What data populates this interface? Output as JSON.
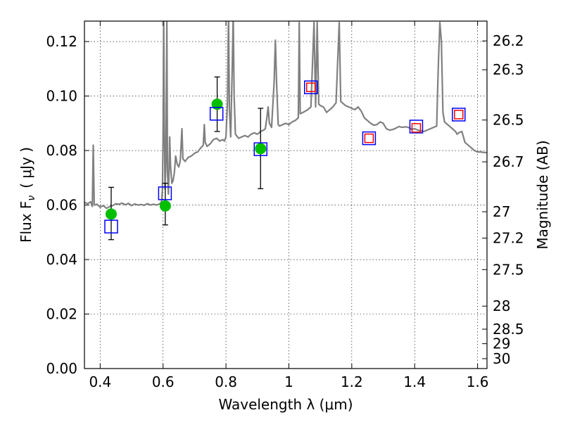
{
  "chart_data": {
    "type": "scatter",
    "xlabel": "Wavelength  λ (μm)",
    "ylabel": "Flux  F",
    "ylabel_sub": "ν",
    "ylabel_unit": "( μJy )",
    "ylabel_right": "Magnitude (AB)",
    "xlim": [
      0.35,
      1.63
    ],
    "ylim": [
      0.0,
      0.1275
    ],
    "x_scale": "linear",
    "y_scale": "linear",
    "grid": true,
    "grid_style": "dotted",
    "x_ticks": [
      {
        "value": 0.4,
        "label": "0.4"
      },
      {
        "value": 0.6,
        "label": "0.6"
      },
      {
        "value": 0.8,
        "label": "0.8"
      },
      {
        "value": 1.0,
        "label": "1"
      },
      {
        "value": 1.2,
        "label": "1.2"
      },
      {
        "value": 1.4,
        "label": "1.4"
      },
      {
        "value": 1.6,
        "label": "1.6"
      }
    ],
    "y_ticks": [
      {
        "value": 0.0,
        "label": "0.00"
      },
      {
        "value": 0.02,
        "label": "0.02"
      },
      {
        "value": 0.04,
        "label": "0.04"
      },
      {
        "value": 0.06,
        "label": "0.06"
      },
      {
        "value": 0.08,
        "label": "0.08"
      },
      {
        "value": 0.1,
        "label": "0.10"
      },
      {
        "value": 0.12,
        "label": "0.12"
      }
    ],
    "right_ticks": [
      {
        "label": "26.2",
        "mag": 26.2
      },
      {
        "label": "26.3",
        "mag": 26.3
      },
      {
        "label": "26.5",
        "mag": 26.5
      },
      {
        "label": "26.7",
        "mag": 26.7
      },
      {
        "label": "27",
        "mag": 27.0
      },
      {
        "label": "27.2",
        "mag": 27.2
      },
      {
        "label": "27.5",
        "mag": 27.5
      },
      {
        "label": "28",
        "mag": 28.0
      },
      {
        "label": "28.5",
        "mag": 28.5
      },
      {
        "label": "29",
        "mag": 29.0
      },
      {
        "label": "30",
        "mag": 30.0
      }
    ],
    "model_spectrum": {
      "color": "#808080",
      "points": [
        [
          0.35,
          0.061
        ],
        [
          0.36,
          0.0605
        ],
        [
          0.37,
          0.0612
        ],
        [
          0.375,
          0.0595
        ],
        [
          0.378,
          0.082
        ],
        [
          0.381,
          0.06
        ],
        [
          0.39,
          0.0603
        ],
        [
          0.4,
          0.0592
        ],
        [
          0.41,
          0.0598
        ],
        [
          0.42,
          0.0588
        ],
        [
          0.43,
          0.0594
        ],
        [
          0.44,
          0.0598
        ],
        [
          0.45,
          0.0605
        ],
        [
          0.46,
          0.0603
        ],
        [
          0.47,
          0.0607
        ],
        [
          0.48,
          0.0601
        ],
        [
          0.49,
          0.0606
        ],
        [
          0.5,
          0.0598
        ],
        [
          0.51,
          0.0604
        ],
        [
          0.52,
          0.06
        ],
        [
          0.53,
          0.0602
        ],
        [
          0.54,
          0.0599
        ],
        [
          0.55,
          0.0605
        ],
        [
          0.56,
          0.06
        ],
        [
          0.57,
          0.0603
        ],
        [
          0.58,
          0.06
        ],
        [
          0.59,
          0.0605
        ],
        [
          0.595,
          0.0612
        ],
        [
          0.598,
          0.0655
        ],
        [
          0.6,
          0.085
        ],
        [
          0.602,
          0.13
        ],
        [
          0.604,
          0.09
        ],
        [
          0.606,
          0.066
        ],
        [
          0.609,
          0.075
        ],
        [
          0.612,
          0.13
        ],
        [
          0.614,
          0.072
        ],
        [
          0.617,
          0.064
        ],
        [
          0.619,
          0.072
        ],
        [
          0.621,
          0.085
        ],
        [
          0.624,
          0.074
        ],
        [
          0.628,
          0.068
        ],
        [
          0.632,
          0.069
        ],
        [
          0.636,
          0.072
        ],
        [
          0.64,
          0.078
        ],
        [
          0.645,
          0.075
        ],
        [
          0.65,
          0.074
        ],
        [
          0.655,
          0.0765
        ],
        [
          0.66,
          0.088
        ],
        [
          0.663,
          0.077
        ],
        [
          0.67,
          0.076
        ],
        [
          0.68,
          0.0775
        ],
        [
          0.69,
          0.078
        ],
        [
          0.7,
          0.079
        ],
        [
          0.71,
          0.0795
        ],
        [
          0.72,
          0.081
        ],
        [
          0.728,
          0.082
        ],
        [
          0.731,
          0.0895
        ],
        [
          0.734,
          0.083
        ],
        [
          0.74,
          0.0815
        ],
        [
          0.75,
          0.0825
        ],
        [
          0.76,
          0.084
        ],
        [
          0.77,
          0.0845
        ],
        [
          0.78,
          0.0835
        ],
        [
          0.79,
          0.084
        ],
        [
          0.795,
          0.0835
        ],
        [
          0.8,
          0.085
        ],
        [
          0.805,
          0.098
        ],
        [
          0.808,
          0.13
        ],
        [
          0.811,
          0.095
        ],
        [
          0.815,
          0.085
        ],
        [
          0.82,
          0.1105
        ],
        [
          0.823,
          0.13
        ],
        [
          0.826,
          0.1
        ],
        [
          0.83,
          0.086
        ],
        [
          0.84,
          0.0845
        ],
        [
          0.85,
          0.085
        ],
        [
          0.86,
          0.0855
        ],
        [
          0.87,
          0.085
        ],
        [
          0.88,
          0.086
        ],
        [
          0.89,
          0.0865
        ],
        [
          0.9,
          0.086
        ],
        [
          0.91,
          0.087
        ],
        [
          0.92,
          0.0875
        ],
        [
          0.925,
          0.088
        ],
        [
          0.93,
          0.092
        ],
        [
          0.934,
          0.096
        ],
        [
          0.938,
          0.09
        ],
        [
          0.945,
          0.0885
        ],
        [
          0.953,
          0.105
        ],
        [
          0.957,
          0.1205
        ],
        [
          0.961,
          0.105
        ],
        [
          0.966,
          0.0895
        ],
        [
          0.97,
          0.089
        ],
        [
          0.98,
          0.0895
        ],
        [
          0.99,
          0.09
        ],
        [
          1.0,
          0.0895
        ],
        [
          1.01,
          0.0905
        ],
        [
          1.02,
          0.091
        ],
        [
          1.03,
          0.092
        ],
        [
          1.033,
          0.127
        ],
        [
          1.036,
          0.0935
        ],
        [
          1.045,
          0.094
        ],
        [
          1.06,
          0.095
        ],
        [
          1.07,
          0.096
        ],
        [
          1.08,
          0.127
        ],
        [
          1.085,
          0.096
        ],
        [
          1.09,
          0.127
        ],
        [
          1.095,
          0.097
        ],
        [
          1.1,
          0.0965
        ],
        [
          1.11,
          0.096
        ],
        [
          1.12,
          0.094
        ],
        [
          1.13,
          0.095
        ],
        [
          1.14,
          0.096
        ],
        [
          1.15,
          0.0975
        ],
        [
          1.16,
          0.127
        ],
        [
          1.165,
          0.098
        ],
        [
          1.17,
          0.0975
        ],
        [
          1.18,
          0.0965
        ],
        [
          1.19,
          0.096
        ],
        [
          1.2,
          0.0955
        ],
        [
          1.21,
          0.095
        ],
        [
          1.22,
          0.096
        ],
        [
          1.23,
          0.0945
        ],
        [
          1.24,
          0.092
        ],
        [
          1.25,
          0.091
        ],
        [
          1.26,
          0.09
        ],
        [
          1.27,
          0.0893
        ],
        [
          1.28,
          0.0895
        ],
        [
          1.29,
          0.0905
        ],
        [
          1.3,
          0.09
        ],
        [
          1.31,
          0.088
        ],
        [
          1.32,
          0.0875
        ],
        [
          1.33,
          0.0877
        ],
        [
          1.34,
          0.0882
        ],
        [
          1.35,
          0.0888
        ],
        [
          1.36,
          0.0885
        ],
        [
          1.37,
          0.0887
        ],
        [
          1.38,
          0.0885
        ],
        [
          1.39,
          0.0878
        ],
        [
          1.4,
          0.088
        ],
        [
          1.41,
          0.0875
        ],
        [
          1.42,
          0.0872
        ],
        [
          1.43,
          0.087
        ],
        [
          1.44,
          0.0875
        ],
        [
          1.45,
          0.088
        ],
        [
          1.46,
          0.0885
        ],
        [
          1.47,
          0.089
        ],
        [
          1.475,
          0.11
        ],
        [
          1.48,
          0.127
        ],
        [
          1.485,
          0.12
        ],
        [
          1.49,
          0.094
        ],
        [
          1.495,
          0.0905
        ],
        [
          1.5,
          0.09
        ],
        [
          1.51,
          0.089
        ],
        [
          1.52,
          0.088
        ],
        [
          1.53,
          0.087
        ],
        [
          1.535,
          0.086
        ],
        [
          1.54,
          0.0865
        ],
        [
          1.55,
          0.087
        ],
        [
          1.555,
          0.085
        ],
        [
          1.56,
          0.083
        ],
        [
          1.57,
          0.082
        ],
        [
          1.58,
          0.081
        ],
        [
          1.59,
          0.08
        ],
        [
          1.6,
          0.0795
        ],
        [
          1.61,
          0.0795
        ],
        [
          1.62,
          0.0793
        ],
        [
          1.63,
          0.0793
        ]
      ]
    },
    "series": [
      {
        "marker": "circle",
        "color": "#00bf00",
        "points": [
          {
            "x": 0.435,
            "y": 0.0567,
            "yerr_low": 0.0473,
            "yerr_high": 0.0665
          },
          {
            "x": 0.607,
            "y": 0.0597,
            "yerr_low": 0.0527,
            "yerr_high": 0.068
          },
          {
            "x": 0.772,
            "y": 0.097,
            "yerr_low": 0.087,
            "yerr_high": 0.107
          },
          {
            "x": 0.91,
            "y": 0.0807,
            "yerr_low": 0.066,
            "yerr_high": 0.0955
          }
        ]
      },
      {
        "marker": "open-square",
        "color": "#0000ff",
        "points": [
          {
            "x": 0.435,
            "y": 0.0521
          },
          {
            "x": 0.606,
            "y": 0.0643
          },
          {
            "x": 0.77,
            "y": 0.0935
          },
          {
            "x": 0.91,
            "y": 0.0805
          },
          {
            "x": 1.07,
            "y": 0.1032
          },
          {
            "x": 1.255,
            "y": 0.0845
          },
          {
            "x": 1.405,
            "y": 0.0888
          },
          {
            "x": 1.54,
            "y": 0.0932
          }
        ]
      },
      {
        "marker": "open-square",
        "color": "#ff0000",
        "points": [
          {
            "x": 1.07,
            "y": 0.1032
          },
          {
            "x": 1.255,
            "y": 0.0845
          },
          {
            "x": 1.405,
            "y": 0.0883
          },
          {
            "x": 1.54,
            "y": 0.0932
          }
        ]
      }
    ]
  }
}
